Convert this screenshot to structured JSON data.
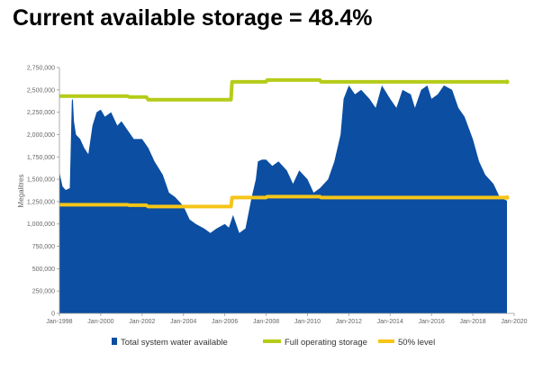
{
  "title": "Current available storage = 48.4%",
  "colors": {
    "area": "#0b4ea2",
    "full": "#b5cc18",
    "half": "#f5c518",
    "axis": "#9a9a9a",
    "text": "#666666"
  },
  "chart_data": {
    "type": "area",
    "title": "Current available storage = 48.4%",
    "xlabel": "",
    "ylabel": "Megalitres",
    "xlim": [
      1998.0,
      2020.0
    ],
    "ylim": [
      0,
      2750000
    ],
    "grid": false,
    "legend_position": "bottom",
    "x_ticks": [
      {
        "x": 1998,
        "label": "Jan-1998"
      },
      {
        "x": 2000,
        "label": "Jan-2000"
      },
      {
        "x": 2002,
        "label": "Jan-2002"
      },
      {
        "x": 2004,
        "label": "Jan-2004"
      },
      {
        "x": 2006,
        "label": "Jan-2006"
      },
      {
        "x": 2008,
        "label": "Jan-2008"
      },
      {
        "x": 2010,
        "label": "Jan-2010"
      },
      {
        "x": 2012,
        "label": "Jan-2012"
      },
      {
        "x": 2014,
        "label": "Jan-2014"
      },
      {
        "x": 2016,
        "label": "Jan-2016"
      },
      {
        "x": 2018,
        "label": "Jan-2018"
      },
      {
        "x": 2020,
        "label": "Jan-2020"
      }
    ],
    "y_ticks": [
      {
        "y": 0,
        "label": "0"
      },
      {
        "y": 250000,
        "label": "250,000"
      },
      {
        "y": 500000,
        "label": "500,000"
      },
      {
        "y": 750000,
        "label": "750,000"
      },
      {
        "y": 1000000,
        "label": "1,000,000"
      },
      {
        "y": 1250000,
        "label": "1,250,000"
      },
      {
        "y": 1500000,
        "label": "1,500,000"
      },
      {
        "y": 1750000,
        "label": "1,750,000"
      },
      {
        "y": 2000000,
        "label": "2,000,000"
      },
      {
        "y": 2250000,
        "label": "2,250,000"
      },
      {
        "y": 2500000,
        "label": "2,500,000"
      },
      {
        "y": 2750000,
        "label": "2,750,000"
      }
    ],
    "series": [
      {
        "name": "Total system water available",
        "kind": "area",
        "x": [
          1998.0,
          1998.15,
          1998.3,
          1998.5,
          1998.6,
          1998.65,
          1998.7,
          1998.8,
          1999.0,
          1999.2,
          1999.4,
          1999.6,
          1999.8,
          2000.0,
          2000.2,
          2000.5,
          2000.8,
          2001.0,
          2001.3,
          2001.6,
          2002.0,
          2002.3,
          2002.6,
          2003.0,
          2003.3,
          2003.6,
          2004.0,
          2004.3,
          2004.6,
          2005.0,
          2005.3,
          2005.6,
          2006.0,
          2006.2,
          2006.4,
          2006.7,
          2007.0,
          2007.3,
          2007.5,
          2007.6,
          2007.8,
          2008.0,
          2008.3,
          2008.6,
          2009.0,
          2009.3,
          2009.6,
          2010.0,
          2010.3,
          2010.6,
          2011.0,
          2011.3,
          2011.6,
          2011.75,
          2012.0,
          2012.3,
          2012.6,
          2013.0,
          2013.3,
          2013.6,
          2014.0,
          2014.3,
          2014.6,
          2015.0,
          2015.2,
          2015.5,
          2015.8,
          2016.0,
          2016.3,
          2016.6,
          2017.0,
          2017.3,
          2017.6,
          2018.0,
          2018.3,
          2018.6,
          2019.0,
          2019.3,
          2019.65
        ],
        "y": [
          1580000,
          1420000,
          1380000,
          1400000,
          2380000,
          2400000,
          2150000,
          2000000,
          1950000,
          1850000,
          1780000,
          2100000,
          2250000,
          2280000,
          2200000,
          2250000,
          2100000,
          2150000,
          2050000,
          1950000,
          1950000,
          1850000,
          1700000,
          1550000,
          1350000,
          1300000,
          1200000,
          1050000,
          1000000,
          950000,
          900000,
          950000,
          1000000,
          960000,
          1100000,
          900000,
          950000,
          1300000,
          1500000,
          1700000,
          1720000,
          1720000,
          1650000,
          1700000,
          1600000,
          1450000,
          1600000,
          1500000,
          1350000,
          1400000,
          1500000,
          1700000,
          2000000,
          2400000,
          2550000,
          2450000,
          2500000,
          2400000,
          2300000,
          2550000,
          2400000,
          2300000,
          2500000,
          2450000,
          2300000,
          2500000,
          2550000,
          2400000,
          2450000,
          2550000,
          2500000,
          2300000,
          2200000,
          1950000,
          1700000,
          1550000,
          1450000,
          1300000,
          1260000
        ]
      },
      {
        "name": "Full operating storage",
        "kind": "line",
        "x": [
          1998.0,
          2001.3,
          2001.4,
          2002.2,
          2002.3,
          2006.3,
          2006.35,
          2008.0,
          2008.05,
          2010.6,
          2010.65,
          2019.65
        ],
        "y": [
          2430000,
          2430000,
          2420000,
          2420000,
          2390000,
          2390000,
          2590000,
          2590000,
          2610000,
          2610000,
          2590000,
          2590000
        ]
      },
      {
        "name": "50% level",
        "kind": "line",
        "x": [
          1998.0,
          2001.3,
          2001.4,
          2002.2,
          2002.3,
          2006.3,
          2006.35,
          2008.0,
          2008.05,
          2010.6,
          2010.65,
          2019.65
        ],
        "y": [
          1215000,
          1215000,
          1210000,
          1210000,
          1195000,
          1195000,
          1295000,
          1295000,
          1305000,
          1305000,
          1295000,
          1295000
        ]
      }
    ]
  }
}
